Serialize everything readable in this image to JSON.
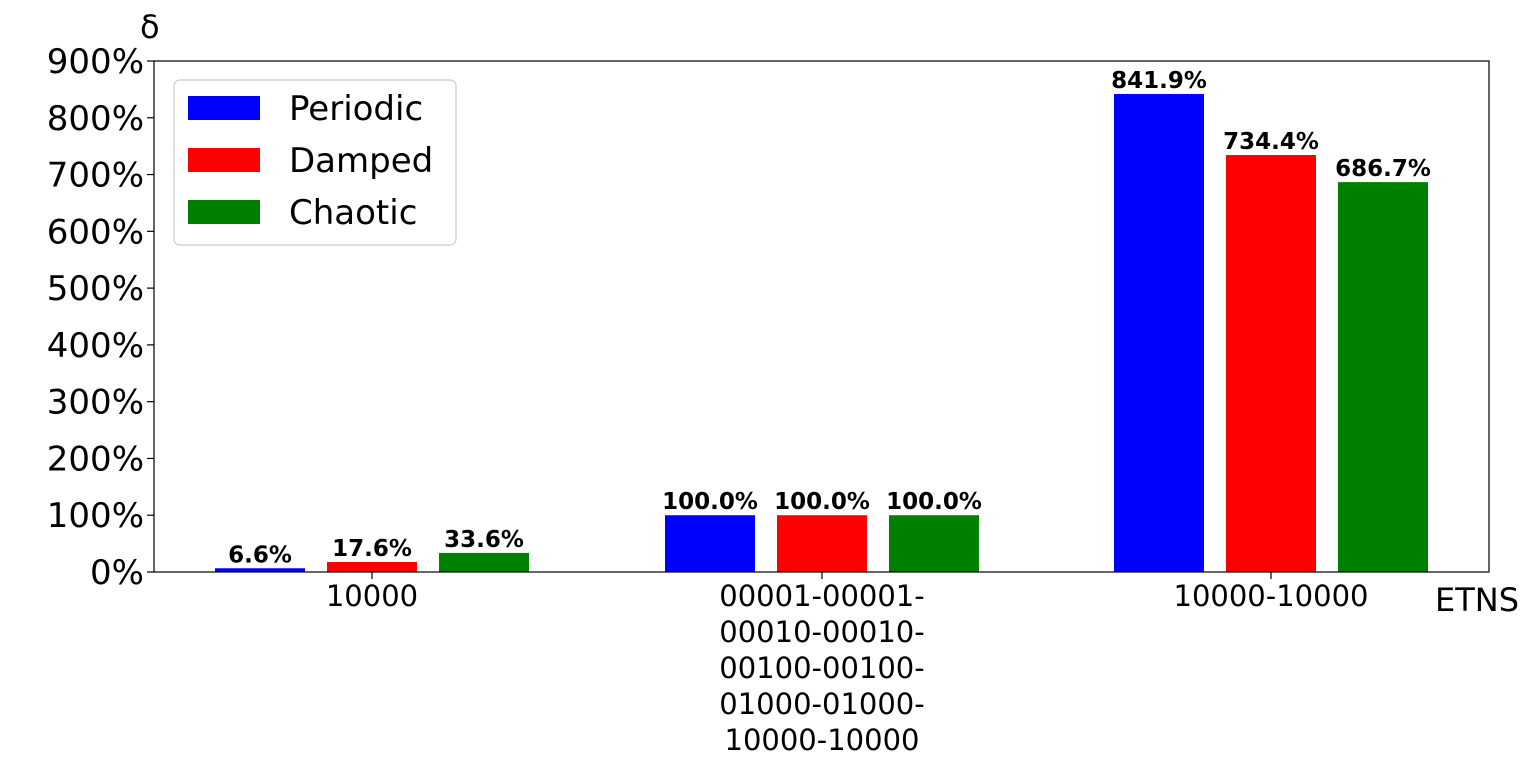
{
  "chart_data": {
    "type": "bar",
    "ylabel": "δ",
    "xlabel": "ETNS",
    "categories": [
      [
        "10000"
      ],
      [
        "00001-00001-",
        "00010-00010-",
        "00100-00100-",
        "01000-01000-",
        "10000-10000"
      ],
      [
        "10000-10000"
      ]
    ],
    "series": [
      {
        "name": "Periodic",
        "color": "#0000ff",
        "values": [
          6.6,
          100.0,
          841.9
        ],
        "labels": [
          "6.6%",
          "100.0%",
          "841.9%"
        ]
      },
      {
        "name": "Damped",
        "color": "#ff0000",
        "values": [
          17.6,
          100.0,
          734.4
        ],
        "labels": [
          "17.6%",
          "100.0%",
          "734.4%"
        ]
      },
      {
        "name": "Chaotic",
        "color": "#008000",
        "values": [
          33.6,
          100.0,
          686.7
        ],
        "labels": [
          "33.6%",
          "100.0%",
          "686.7%"
        ]
      }
    ],
    "ylim": [
      0,
      900
    ],
    "yticks": [
      0,
      100,
      200,
      300,
      400,
      500,
      600,
      700,
      800,
      900
    ],
    "ytick_labels": [
      "0%",
      "100%",
      "200%",
      "300%",
      "400%",
      "500%",
      "600%",
      "700%",
      "800%",
      "900%"
    ],
    "legend_position": "top-left",
    "grid": false
  }
}
